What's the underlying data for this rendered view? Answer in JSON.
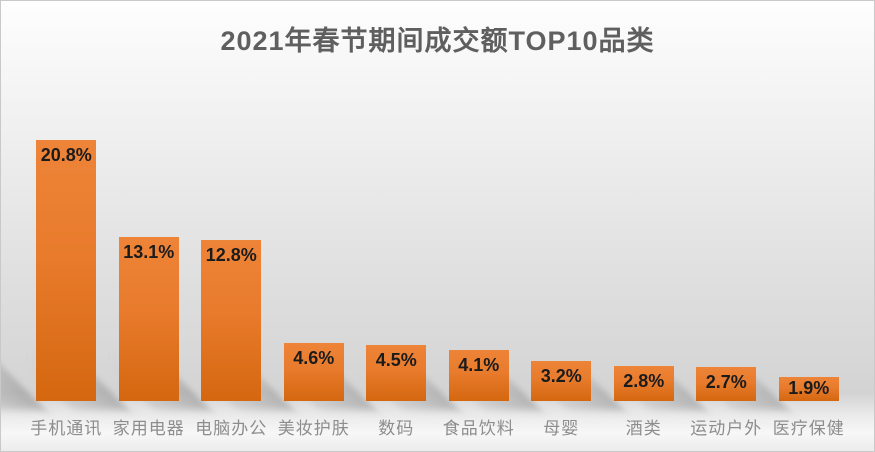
{
  "chart_data": {
    "type": "bar",
    "title": "2021年春节期间成交额TOP10品类",
    "categories": [
      "手机通讯",
      "家用电器",
      "电脑办公",
      "美妆护肤",
      "数码",
      "食品饮料",
      "母婴",
      "酒类",
      "运动户外",
      "医疗保健"
    ],
    "values": [
      20.8,
      13.1,
      12.8,
      4.6,
      4.5,
      4.1,
      3.2,
      2.8,
      2.7,
      1.9
    ],
    "value_labels": [
      "20.8%",
      "13.1%",
      "12.8%",
      "4.6%",
      "4.5%",
      "4.1%",
      "3.2%",
      "2.8%",
      "2.7%",
      "1.9%"
    ],
    "unit": "%",
    "xlabel": "",
    "ylabel": "",
    "ylim": [
      0,
      22
    ],
    "grid": false,
    "legend": "none",
    "value_label_position": "inside-top",
    "colors": {
      "bar_gradient_top": "#ee8438",
      "bar_gradient_bottom": "#d4670f",
      "value_label": "#1b1b1b",
      "category_label": "#8d8d8d",
      "title": "#5f5f5f"
    }
  }
}
